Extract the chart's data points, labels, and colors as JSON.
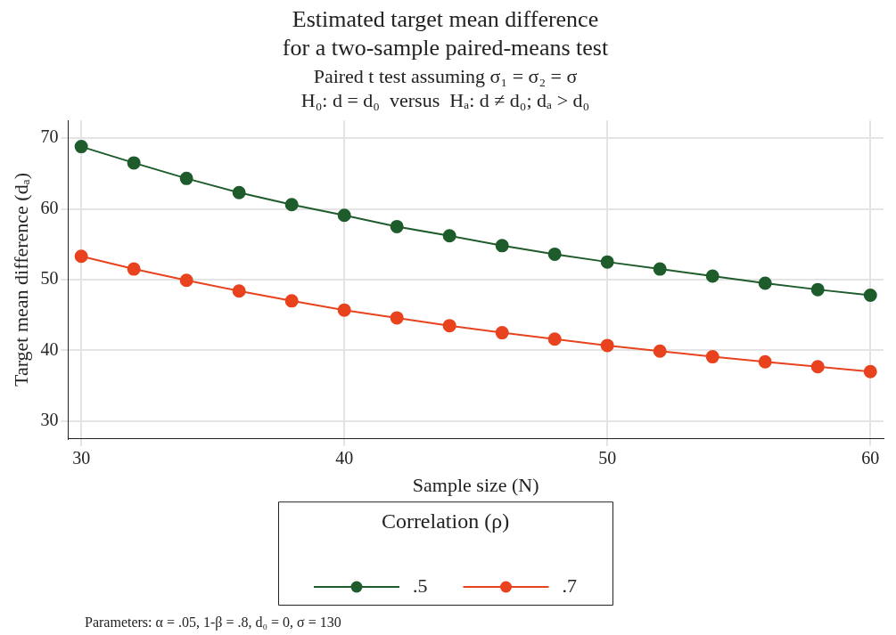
{
  "chart_data": {
    "type": "line",
    "title": "Estimated target mean difference\nfor a two-sample paired-means test",
    "subtitle": "Paired t test assuming σ₁ = σ₂ = σ\nH₀: d = d₀  versus  Hₐ: d ≠ d₀; dₐ > d₀",
    "xlabel": "Sample size (N)",
    "ylabel": "Target mean difference (dₐ)",
    "legend_title": "Correlation (ρ)",
    "x": [
      30,
      32,
      34,
      36,
      38,
      40,
      42,
      44,
      46,
      48,
      50,
      52,
      54,
      56,
      58,
      60
    ],
    "series": [
      {
        "name": ".5",
        "color": "#1e5c2c",
        "values": [
          68.8,
          66.5,
          64.3,
          62.3,
          60.6,
          59.1,
          57.5,
          56.2,
          54.8,
          53.6,
          52.5,
          51.5,
          50.5,
          49.5,
          48.6,
          47.8
        ]
      },
      {
        "name": ".7",
        "color": "#e8431e",
        "values": [
          53.3,
          51.5,
          49.9,
          48.4,
          47.0,
          45.7,
          44.6,
          43.5,
          42.5,
          41.6,
          40.7,
          39.9,
          39.1,
          38.4,
          37.7,
          37.0
        ]
      }
    ],
    "xlim": [
      29.5,
      60.5
    ],
    "xticks": [
      30,
      40,
      50,
      60
    ],
    "ylim": [
      27.5,
      72.5
    ],
    "yticks": [
      30,
      40,
      50,
      60,
      70
    ],
    "grid": true,
    "legend": "bottom",
    "marker": "circle",
    "line_style": "solid",
    "annotations": [
      "Parameters: α = .05, 1-β = .8, d₀ = 0, σ = 130"
    ]
  }
}
